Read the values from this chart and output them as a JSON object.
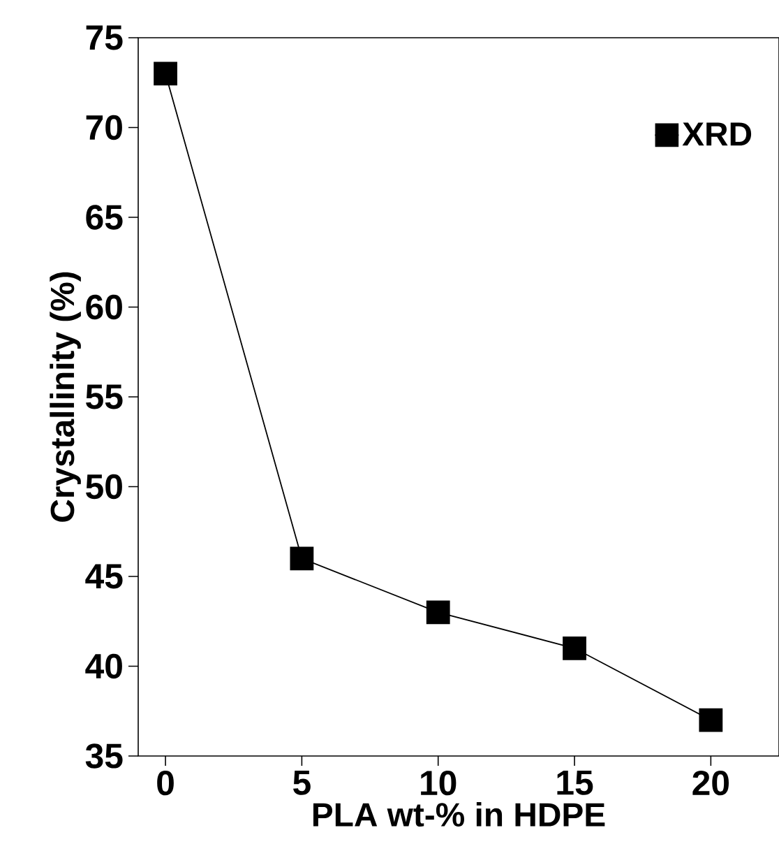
{
  "chart_data": {
    "type": "line",
    "xlabel": "PLA wt-% in HDPE",
    "ylabel": "Crystallinity (%)",
    "x": [
      0,
      5,
      10,
      15,
      20
    ],
    "series": [
      {
        "name": "XRD",
        "color": "#000000",
        "values": [
          73,
          46,
          43,
          41,
          37
        ]
      }
    ],
    "xlim": [
      -1,
      22.5
    ],
    "ylim": [
      35,
      75
    ],
    "xticks": [
      0,
      5,
      10,
      15,
      20
    ],
    "yticks": [
      35,
      40,
      45,
      50,
      55,
      60,
      65,
      70,
      75
    ],
    "marker": "square",
    "line_style": "solid",
    "legend": "top right",
    "grid": false
  }
}
